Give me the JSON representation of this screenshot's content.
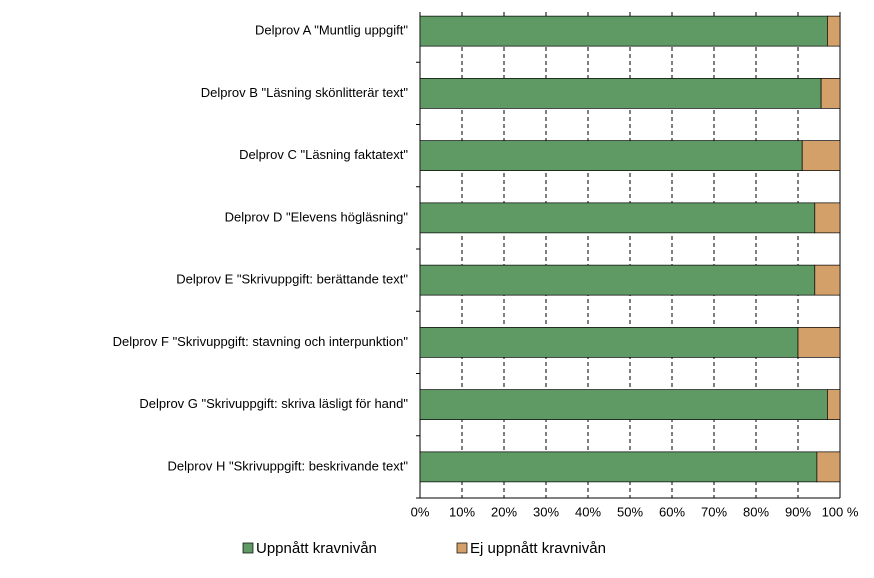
{
  "chart_data": {
    "type": "stacked-barh",
    "categories": [
      "Delprov A \"Muntlig uppgift\"",
      "Delprov B \"Läsning skönlitterär text\"",
      "Delprov C \"Läsning faktatext\"",
      "Delprov D \"Elevens högläsning\"",
      "Delprov E \"Skrivuppgift: berättande text\"",
      "Delprov F \"Skrivuppgift: stavning och interpunktion\"",
      "Delprov G \"Skrivuppgift: skriva läsligt för hand\"",
      "Delprov H \"Skrivuppgift: beskrivande text\""
    ],
    "series": [
      {
        "name": "Uppnått kravnivån",
        "color": "#5f9a64",
        "values": [
          97,
          95.5,
          91,
          94,
          94,
          90,
          97,
          94.5
        ]
      },
      {
        "name": "Ej uppnått kravnivån",
        "color": "#d4a06a",
        "values": [
          3,
          4.5,
          9,
          6,
          6,
          10,
          3,
          5.5
        ]
      }
    ],
    "xlim": [
      0,
      100
    ],
    "xticks": [
      {
        "value": 0,
        "label": "0%"
      },
      {
        "value": 10,
        "label": "10%"
      },
      {
        "value": 20,
        "label": "20%"
      },
      {
        "value": 30,
        "label": "30%"
      },
      {
        "value": 40,
        "label": "40%"
      },
      {
        "value": 50,
        "label": "50%"
      },
      {
        "value": 60,
        "label": "60%"
      },
      {
        "value": 70,
        "label": "70%"
      },
      {
        "value": 80,
        "label": "80%"
      },
      {
        "value": 90,
        "label": "90%"
      },
      {
        "value": 100,
        "label": "100 %"
      }
    ],
    "grid": true,
    "legend": "bottom"
  }
}
